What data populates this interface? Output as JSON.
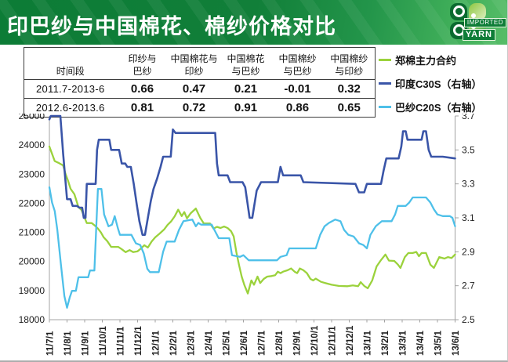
{
  "header": {
    "title": "印巴纱与中国棉花、棉纱价格对比",
    "logo": {
      "line1": "IMPORTED",
      "line2": "YARN"
    }
  },
  "correlation_table": {
    "headers": [
      [
        "",
        "时间段"
      ],
      [
        "印纱与",
        "巴纱"
      ],
      [
        "中国棉花与",
        "印纱"
      ],
      [
        "中国棉花",
        "与巴纱"
      ],
      [
        "中国棉纱",
        "与巴纱"
      ],
      [
        "中国棉纱",
        "与印纱"
      ]
    ],
    "rows": [
      [
        "2011.7-2013-6",
        "0.66",
        "0.47",
        "0.21",
        "-0.01",
        "0.32"
      ],
      [
        "2012.6-2013.6",
        "0.81",
        "0.72",
        "0.91",
        "0.86",
        "0.65"
      ]
    ]
  },
  "legend": [
    {
      "label": "郑棉主力合约",
      "color": "#9bd23c"
    },
    {
      "label": "印度C30S（右轴）",
      "color": "#3a55a8"
    },
    {
      "label": "巴纱C20S（右轴）",
      "color": "#4ec0e9"
    }
  ],
  "colors": {
    "banner_green_dark": "#0c7c36",
    "banner_green_light": "#57bd68",
    "axis_gray": "#a3a3a3",
    "label_dark": "#1f1f1f"
  },
  "chart_data": {
    "type": "line",
    "title": "",
    "xlabel": "",
    "grid": false,
    "legend_position": "top-right",
    "y_left": {
      "min": 18000,
      "max": 25000,
      "ticks": [
        25000,
        24000,
        23000,
        22000,
        21000,
        20000,
        19000,
        18000
      ]
    },
    "y_right": {
      "min": 2.5,
      "max": 3.7,
      "ticks": [
        3.7,
        3.5,
        3.3,
        3.1,
        2.9,
        2.7,
        2.5
      ]
    },
    "x_labels": [
      "11/7/1",
      "11/8/1",
      "11/9/1",
      "11/10/1",
      "11/11/1",
      "11/12/1",
      "12/1/1",
      "12/2/1",
      "12/3/1",
      "12/4/1",
      "12/5/1",
      "12/6/1",
      "12/7/1",
      "12/8/1",
      "12/9/1",
      "12/10/1",
      "12/11/1",
      "12/12/1",
      "13/1/1",
      "13/2/1",
      "13/3/1",
      "13/4/1",
      "13/5/1",
      "13/6/1"
    ],
    "series": [
      {
        "id": "zhengmian-main-contract",
        "name": "郑棉主力合约",
        "axis": "left",
        "color": "#9bd23c",
        "width": 2.3,
        "points": [
          [
            0,
            23950
          ],
          [
            0.15,
            23700
          ],
          [
            0.3,
            23450
          ],
          [
            0.55,
            23380
          ],
          [
            0.78,
            23300
          ],
          [
            0.92,
            23000
          ],
          [
            1.05,
            22790
          ],
          [
            1.2,
            22500
          ],
          [
            1.42,
            22310
          ],
          [
            1.65,
            21870
          ],
          [
            1.82,
            21770
          ],
          [
            2.0,
            21500
          ],
          [
            2.12,
            21320
          ],
          [
            2.4,
            21320
          ],
          [
            2.58,
            21230
          ],
          [
            2.75,
            21130
          ],
          [
            2.92,
            21000
          ],
          [
            3.08,
            20830
          ],
          [
            3.28,
            20700
          ],
          [
            3.5,
            20500
          ],
          [
            3.9,
            20500
          ],
          [
            4.1,
            20420
          ],
          [
            4.32,
            20320
          ],
          [
            4.55,
            20390
          ],
          [
            4.75,
            20320
          ],
          [
            5.0,
            20350
          ],
          [
            5.2,
            20450
          ],
          [
            5.38,
            20560
          ],
          [
            5.58,
            20480
          ],
          [
            5.8,
            20690
          ],
          [
            6.0,
            20830
          ],
          [
            6.25,
            20960
          ],
          [
            6.5,
            21100
          ],
          [
            6.7,
            21260
          ],
          [
            6.9,
            21380
          ],
          [
            7.1,
            21550
          ],
          [
            7.3,
            21780
          ],
          [
            7.5,
            21560
          ],
          [
            7.65,
            21700
          ],
          [
            7.8,
            21480
          ],
          [
            8.0,
            21650
          ],
          [
            8.3,
            21820
          ],
          [
            8.55,
            21500
          ],
          [
            8.75,
            21310
          ],
          [
            9.1,
            21310
          ],
          [
            9.3,
            21130
          ],
          [
            9.5,
            21190
          ],
          [
            9.7,
            21150
          ],
          [
            9.9,
            21200
          ],
          [
            10.1,
            21150
          ],
          [
            10.3,
            21040
          ],
          [
            10.45,
            20860
          ],
          [
            10.6,
            20320
          ],
          [
            10.75,
            19880
          ],
          [
            10.9,
            19480
          ],
          [
            11.05,
            19200
          ],
          [
            11.25,
            18900
          ],
          [
            11.45,
            19350
          ],
          [
            11.6,
            19200
          ],
          [
            11.8,
            19480
          ],
          [
            11.95,
            19260
          ],
          [
            12.15,
            19400
          ],
          [
            12.35,
            19480
          ],
          [
            12.6,
            19500
          ],
          [
            12.8,
            19530
          ],
          [
            12.95,
            19650
          ],
          [
            13.1,
            19600
          ],
          [
            13.25,
            19650
          ],
          [
            13.5,
            19700
          ],
          [
            13.7,
            19760
          ],
          [
            13.9,
            19650
          ],
          [
            14.05,
            19600
          ],
          [
            14.2,
            19760
          ],
          [
            14.4,
            19700
          ],
          [
            14.6,
            19600
          ],
          [
            14.8,
            19400
          ],
          [
            14.95,
            19350
          ],
          [
            15.1,
            19410
          ],
          [
            15.4,
            19300
          ],
          [
            15.7,
            19250
          ],
          [
            16.0,
            19200
          ],
          [
            16.4,
            19160
          ],
          [
            16.9,
            19150
          ],
          [
            17.2,
            19180
          ],
          [
            17.5,
            19150
          ],
          [
            17.65,
            19290
          ],
          [
            17.85,
            19160
          ],
          [
            18.05,
            19080
          ],
          [
            18.3,
            19350
          ],
          [
            18.55,
            19830
          ],
          [
            18.8,
            20050
          ],
          [
            19.05,
            20240
          ],
          [
            19.25,
            20030
          ],
          [
            19.55,
            20020
          ],
          [
            19.75,
            19900
          ],
          [
            19.9,
            19780
          ],
          [
            20.15,
            20150
          ],
          [
            20.35,
            20290
          ],
          [
            20.6,
            20290
          ],
          [
            20.8,
            20330
          ],
          [
            20.95,
            20180
          ],
          [
            21.1,
            20290
          ],
          [
            21.35,
            20290
          ],
          [
            21.6,
            19890
          ],
          [
            21.8,
            19780
          ],
          [
            22.1,
            20150
          ],
          [
            22.4,
            20100
          ],
          [
            22.6,
            20150
          ],
          [
            22.8,
            20120
          ],
          [
            23,
            20240
          ]
        ]
      },
      {
        "id": "pakistan-c20s",
        "name": "巴纱C20S（右轴）",
        "axis": "right",
        "color": "#4ec0e9",
        "width": 2.3,
        "points": [
          [
            0,
            3.28
          ],
          [
            0.15,
            3.19
          ],
          [
            0.3,
            3.14
          ],
          [
            0.45,
            3.03
          ],
          [
            0.65,
            2.83
          ],
          [
            0.85,
            2.64
          ],
          [
            1.0,
            2.57
          ],
          [
            1.15,
            2.63
          ],
          [
            1.28,
            2.67
          ],
          [
            1.5,
            2.67
          ],
          [
            1.65,
            2.75
          ],
          [
            2.2,
            2.75
          ],
          [
            2.3,
            2.79
          ],
          [
            2.55,
            2.79
          ],
          [
            2.68,
            3.1
          ],
          [
            2.75,
            3.27
          ],
          [
            2.95,
            3.27
          ],
          [
            3.1,
            3.12
          ],
          [
            3.35,
            3.05
          ],
          [
            3.55,
            3.06
          ],
          [
            3.7,
            3.11
          ],
          [
            3.88,
            3.04
          ],
          [
            4.0,
            3.0
          ],
          [
            4.65,
            3.0
          ],
          [
            4.9,
            2.95
          ],
          [
            5.15,
            2.94
          ],
          [
            5.35,
            2.89
          ],
          [
            5.55,
            2.8
          ],
          [
            5.7,
            2.78
          ],
          [
            6.2,
            2.78
          ],
          [
            6.45,
            2.9
          ],
          [
            6.65,
            2.96
          ],
          [
            7.1,
            2.96
          ],
          [
            7.35,
            3.03
          ],
          [
            7.6,
            3.08
          ],
          [
            8.1,
            3.09
          ],
          [
            8.3,
            3.05
          ],
          [
            8.45,
            3.07
          ],
          [
            8.6,
            3.06
          ],
          [
            9.2,
            3.06
          ],
          [
            9.45,
            3.01
          ],
          [
            9.6,
            2.98
          ],
          [
            10.2,
            2.98
          ],
          [
            10.35,
            2.88
          ],
          [
            10.8,
            2.87
          ],
          [
            11.0,
            2.88
          ],
          [
            11.3,
            2.85
          ],
          [
            12.9,
            2.85
          ],
          [
            13.1,
            2.87
          ],
          [
            13.45,
            2.88
          ],
          [
            13.6,
            2.92
          ],
          [
            15.1,
            2.92
          ],
          [
            15.35,
            3.0
          ],
          [
            15.6,
            3.05
          ],
          [
            15.85,
            3.07
          ],
          [
            16.2,
            3.09
          ],
          [
            16.5,
            3.08
          ],
          [
            16.7,
            3.03
          ],
          [
            16.95,
            3.0
          ],
          [
            17.25,
            2.99
          ],
          [
            17.55,
            2.95
          ],
          [
            17.8,
            2.94
          ],
          [
            18.0,
            2.92
          ],
          [
            18.2,
            3.0
          ],
          [
            18.5,
            3.05
          ],
          [
            18.85,
            3.08
          ],
          [
            19.4,
            3.08
          ],
          [
            19.6,
            3.12
          ],
          [
            19.75,
            3.17
          ],
          [
            20.2,
            3.17
          ],
          [
            20.4,
            3.19
          ],
          [
            20.6,
            3.22
          ],
          [
            21.35,
            3.22
          ],
          [
            21.6,
            3.19
          ],
          [
            21.8,
            3.15
          ],
          [
            22.0,
            3.12
          ],
          [
            22.3,
            3.11
          ],
          [
            22.7,
            3.11
          ],
          [
            22.85,
            3.1
          ],
          [
            23,
            3.05
          ]
        ]
      },
      {
        "id": "india-c30s",
        "name": "印度C30S（右轴）",
        "axis": "right",
        "color": "#3a55a8",
        "width": 2.6,
        "points": [
          [
            0,
            3.68
          ],
          [
            0.08,
            3.7
          ],
          [
            0.62,
            3.7
          ],
          [
            0.78,
            3.48
          ],
          [
            1.0,
            3.21
          ],
          [
            1.2,
            3.21
          ],
          [
            1.32,
            3.17
          ],
          [
            1.56,
            3.17
          ],
          [
            1.7,
            3.16
          ],
          [
            1.86,
            3.16
          ],
          [
            1.95,
            3.1
          ],
          [
            2.05,
            3.1
          ],
          [
            2.12,
            3.3
          ],
          [
            2.62,
            3.3
          ],
          [
            2.7,
            3.5
          ],
          [
            2.8,
            3.56
          ],
          [
            3.4,
            3.56
          ],
          [
            3.5,
            3.5
          ],
          [
            3.95,
            3.5
          ],
          [
            4.1,
            3.42
          ],
          [
            4.3,
            3.42
          ],
          [
            4.42,
            3.4
          ],
          [
            4.62,
            3.4
          ],
          [
            4.78,
            3.3
          ],
          [
            4.95,
            3.18
          ],
          [
            5.1,
            3.08
          ],
          [
            5.28,
            3.0
          ],
          [
            5.42,
            3.0
          ],
          [
            5.6,
            3.11
          ],
          [
            5.75,
            3.2
          ],
          [
            5.9,
            3.27
          ],
          [
            6.1,
            3.33
          ],
          [
            6.3,
            3.4
          ],
          [
            6.45,
            3.46
          ],
          [
            6.88,
            3.46
          ],
          [
            7.0,
            3.62
          ],
          [
            7.15,
            3.6
          ],
          [
            9.4,
            3.6
          ],
          [
            9.5,
            3.42
          ],
          [
            9.6,
            3.35
          ],
          [
            10.1,
            3.35
          ],
          [
            10.25,
            3.31
          ],
          [
            10.95,
            3.31
          ],
          [
            11.1,
            3.28
          ],
          [
            11.35,
            3.1
          ],
          [
            11.5,
            3.1
          ],
          [
            11.75,
            3.26
          ],
          [
            12.0,
            3.31
          ],
          [
            12.95,
            3.31
          ],
          [
            13.1,
            3.4
          ],
          [
            13.25,
            3.35
          ],
          [
            14.25,
            3.35
          ],
          [
            14.4,
            3.31
          ],
          [
            17.35,
            3.3
          ],
          [
            17.55,
            3.25
          ],
          [
            17.85,
            3.25
          ],
          [
            18.0,
            3.3
          ],
          [
            18.8,
            3.3
          ],
          [
            18.95,
            3.38
          ],
          [
            19.1,
            3.45
          ],
          [
            19.8,
            3.45
          ],
          [
            19.95,
            3.52
          ],
          [
            20.05,
            3.61
          ],
          [
            20.2,
            3.61
          ],
          [
            20.3,
            3.56
          ],
          [
            21.1,
            3.56
          ],
          [
            21.2,
            3.61
          ],
          [
            21.35,
            3.61
          ],
          [
            21.5,
            3.5
          ],
          [
            21.65,
            3.46
          ],
          [
            22.3,
            3.46
          ],
          [
            23,
            3.45
          ]
        ]
      }
    ]
  }
}
